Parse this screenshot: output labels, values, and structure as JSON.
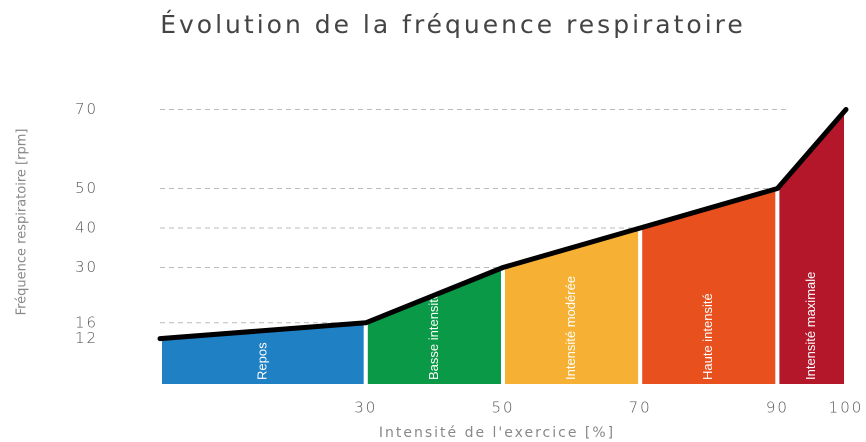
{
  "chart_data": {
    "type": "zoned-area",
    "title": "Évolution de la fréquence respiratoire",
    "x_label": "Intensité de l'exercice [%]",
    "y_label": "Fréquence respiratoire [rpm]",
    "x": [
      0,
      30,
      50,
      70,
      90,
      100
    ],
    "values": [
      12,
      16,
      30,
      40,
      50,
      70
    ],
    "line_color": "#000000",
    "zones": [
      {
        "name": "Repos",
        "color": "#1f80c4",
        "range": [
          0,
          30
        ]
      },
      {
        "name": "Basse intensité",
        "color": "#0a9a47",
        "range": [
          30,
          50
        ]
      },
      {
        "name": "Intensité modérée",
        "color": "#f6b134",
        "range": [
          50,
          70
        ]
      },
      {
        "name": "Haute intensité",
        "color": "#e8501e",
        "range": [
          70,
          90
        ]
      },
      {
        "name": "Intensité maximale",
        "color": "#b5172a",
        "range": [
          90,
          100
        ]
      }
    ],
    "xlim": [
      0,
      100
    ],
    "xticks": [
      30,
      50,
      70,
      90,
      100
    ],
    "ylim": [
      0,
      80
    ],
    "yticks": [
      12,
      16,
      30,
      40,
      50,
      70
    ],
    "grid": true
  }
}
